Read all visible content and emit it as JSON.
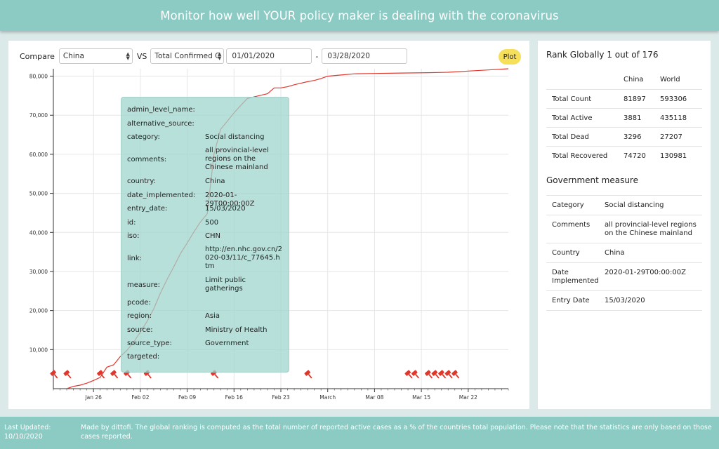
{
  "header": {
    "title": "Monitor how well YOUR policy maker is dealing with the coronavirus"
  },
  "controls": {
    "compare_label": "Compare",
    "country_value": "China",
    "vs_label": "VS",
    "metric_value": "Total Confirmed C",
    "date_from": "01/01/2020",
    "dash": "-",
    "date_to": "03/28/2020",
    "plot_label": "Plot"
  },
  "chart_data": {
    "type": "line",
    "xlabel": "",
    "ylabel": "",
    "x_start": "2020-01-20",
    "x_end": "2020-03-28",
    "x_ticks": [
      {
        "date": "2020-01-26",
        "label": "Jan 26"
      },
      {
        "date": "2020-02-02",
        "label": "Feb 02"
      },
      {
        "date": "2020-02-09",
        "label": "Feb 09"
      },
      {
        "date": "2020-02-16",
        "label": "Feb 16"
      },
      {
        "date": "2020-02-23",
        "label": "Feb 23"
      },
      {
        "date": "2020-03-01",
        "label": "March"
      },
      {
        "date": "2020-03-08",
        "label": "Mar 08"
      },
      {
        "date": "2020-03-15",
        "label": "Mar 15"
      },
      {
        "date": "2020-03-22",
        "label": "Mar 22"
      }
    ],
    "ylim": [
      0,
      81897
    ],
    "y_ticks": [
      {
        "value": 10000,
        "label": "10,000"
      },
      {
        "value": 20000,
        "label": "20,000"
      },
      {
        "value": 30000,
        "label": "30,000"
      },
      {
        "value": 40000,
        "label": "40,000"
      },
      {
        "value": 50000,
        "label": "50,000"
      },
      {
        "value": 60000,
        "label": "60,000"
      },
      {
        "value": 70000,
        "label": "70,000"
      },
      {
        "value": 80000,
        "label": "80,000"
      }
    ],
    "grid": true,
    "line_color": "#e0372d",
    "series": [
      {
        "points": [
          [
            "2020-01-22",
            0
          ],
          [
            "2020-01-23",
            600
          ],
          [
            "2020-01-24",
            900
          ],
          [
            "2020-01-25",
            1400
          ],
          [
            "2020-01-26",
            2100
          ],
          [
            "2020-01-27",
            2900
          ],
          [
            "2020-01-28",
            5500
          ],
          [
            "2020-01-29",
            6100
          ],
          [
            "2020-01-30",
            8200
          ],
          [
            "2020-01-31",
            9800
          ],
          [
            "2020-02-01",
            11900
          ],
          [
            "2020-02-02",
            14500
          ],
          [
            "2020-02-03",
            17200
          ],
          [
            "2020-02-04",
            20400
          ],
          [
            "2020-02-05",
            24500
          ],
          [
            "2020-02-06",
            28000
          ],
          [
            "2020-02-07",
            31200
          ],
          [
            "2020-02-08",
            34600
          ],
          [
            "2020-02-09",
            37300
          ],
          [
            "2020-02-10",
            40100
          ],
          [
            "2020-02-11",
            42700
          ],
          [
            "2020-02-12",
            44800
          ],
          [
            "2020-02-13",
            60000
          ],
          [
            "2020-02-14",
            66400
          ],
          [
            "2020-02-15",
            68500
          ],
          [
            "2020-02-16",
            70600
          ],
          [
            "2020-02-17",
            72500
          ],
          [
            "2020-02-18",
            74300
          ],
          [
            "2020-02-19",
            74700
          ],
          [
            "2020-02-20",
            75100
          ],
          [
            "2020-02-21",
            75500
          ],
          [
            "2020-02-22",
            77000
          ],
          [
            "2020-02-23",
            77000
          ],
          [
            "2020-02-24",
            77300
          ],
          [
            "2020-02-25",
            77800
          ],
          [
            "2020-02-26",
            78200
          ],
          [
            "2020-02-27",
            78600
          ],
          [
            "2020-02-28",
            78900
          ],
          [
            "2020-02-29",
            79400
          ],
          [
            "2020-03-01",
            80000
          ],
          [
            "2020-03-03",
            80300
          ],
          [
            "2020-03-05",
            80600
          ],
          [
            "2020-03-08",
            80700
          ],
          [
            "2020-03-12",
            80800
          ],
          [
            "2020-03-16",
            80900
          ],
          [
            "2020-03-19",
            81000
          ],
          [
            "2020-03-22",
            81300
          ],
          [
            "2020-03-25",
            81600
          ],
          [
            "2020-03-28",
            81897
          ]
        ]
      }
    ],
    "markers": [
      "2020-01-20",
      "2020-01-22",
      "2020-01-27",
      "2020-01-29",
      "2020-01-31",
      "2020-02-03",
      "2020-02-13",
      "2020-02-27",
      "2020-03-13",
      "2020-03-14",
      "2020-03-16",
      "2020-03-17",
      "2020-03-18",
      "2020-03-19",
      "2020-03-20"
    ],
    "marker_color": "#e0372d"
  },
  "tooltip": {
    "rows": [
      {
        "key": "admin_level_name:",
        "value": ""
      },
      {
        "key": "alternative_source:",
        "value": ""
      },
      {
        "key": "category:",
        "value": "Social distancing"
      },
      {
        "key": "comments:",
        "value": "all provincial-level regions on the Chinese mainland"
      },
      {
        "key": "country:",
        "value": "China"
      },
      {
        "key": "date_implemented:",
        "value": "2020-01-29T00:00:00Z"
      },
      {
        "key": "entry_date:",
        "value": "15/03/2020"
      },
      {
        "key": "id:",
        "value": "500"
      },
      {
        "key": "iso:",
        "value": "CHN"
      },
      {
        "key": "link:",
        "value": "http://en.nhc.gov.cn/2020-03/11/c_77645.htm"
      },
      {
        "key": "measure:",
        "value": "Limit public gatherings"
      },
      {
        "key": "pcode:",
        "value": ""
      },
      {
        "key": "region:",
        "value": "Asia"
      },
      {
        "key": "source:",
        "value": "Ministry of Health"
      },
      {
        "key": "source_type:",
        "value": "Government"
      },
      {
        "key": "targeted:",
        "value": ""
      }
    ]
  },
  "rank": {
    "title": "Rank Globally 1 out of 176",
    "col_country": "China",
    "col_world": "World",
    "rows": [
      {
        "label": "Total Count",
        "country": "81897",
        "world": "593306"
      },
      {
        "label": "Total Active",
        "country": "3881",
        "world": "435118"
      },
      {
        "label": "Total Dead",
        "country": "3296",
        "world": "27207"
      },
      {
        "label": "Total Recovered",
        "country": "74720",
        "world": "130981"
      }
    ]
  },
  "government": {
    "title": "Government measure",
    "rows": [
      {
        "label": "Category",
        "value": "Social distancing"
      },
      {
        "label": "Comments",
        "value": "all provincial-level regions on the Chinese mainland"
      },
      {
        "label": "Country",
        "value": "China"
      },
      {
        "label": "Date Implemented",
        "value": "2020-01-29T00:00:00Z"
      },
      {
        "label": "Entry Date",
        "value": "15/03/2020"
      }
    ]
  },
  "footer": {
    "last_updated": "Last Updated: 10/10/2020",
    "note": "Made by dittofi. The global ranking is computed as the total number of reported active cases as a % of the countries total population. Please note that the statistics are only based on those cases reported."
  }
}
